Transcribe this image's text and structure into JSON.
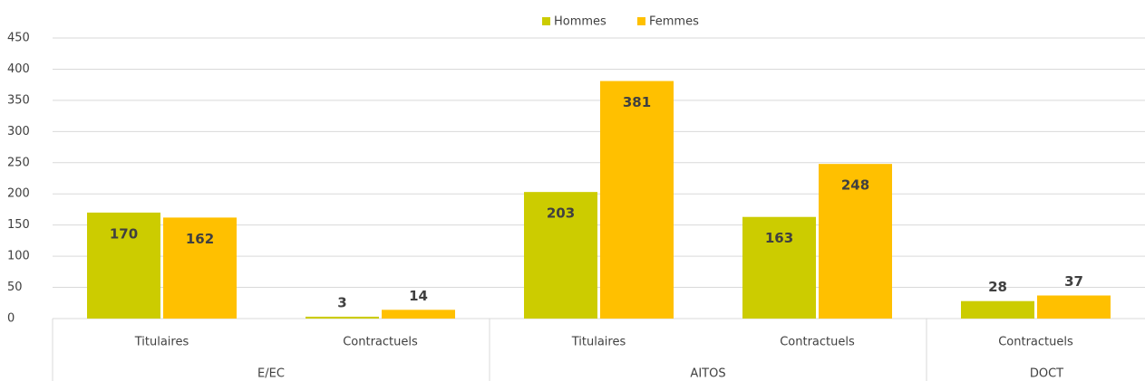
{
  "chart_data": {
    "type": "bar",
    "groups": [
      {
        "label": "E/EC",
        "categories": [
          "Titulaires",
          "Contractuels"
        ]
      },
      {
        "label": "AITOS",
        "categories": [
          "Titulaires",
          "Contractuels"
        ]
      },
      {
        "label": "DOCT",
        "categories": [
          "Contractuels"
        ]
      }
    ],
    "series": [
      {
        "name": "Hommes",
        "color": "#cccc00",
        "values": [
          170,
          3,
          203,
          163,
          28
        ]
      },
      {
        "name": "Femmes",
        "color": "#ffc000",
        "values": [
          162,
          14,
          381,
          248,
          37
        ]
      }
    ],
    "ylim": [
      0,
      450
    ],
    "yticks": [
      0,
      50,
      100,
      150,
      200,
      250,
      300,
      350,
      400,
      450
    ],
    "grid": true,
    "legend": "top"
  }
}
